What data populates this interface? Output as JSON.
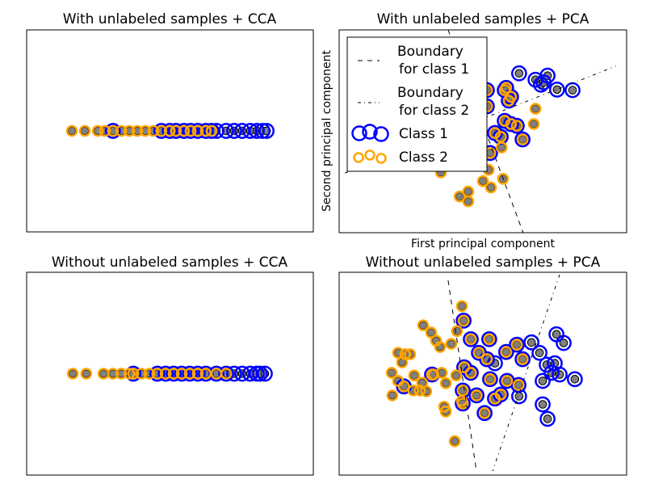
{
  "colors": {
    "class1": "#0000ff",
    "class2": "#ffa500",
    "sample": "#808080",
    "boundary": "#000000"
  },
  "chart_data": [
    {
      "type": "scatter",
      "title": "With unlabeled samples + CCA",
      "xlabel": "",
      "ylabel": "",
      "xlim": [
        0,
        10
      ],
      "ylim": [
        -1,
        1
      ],
      "ticks": false,
      "grid": false,
      "points": [
        [
          1.58,
          0,
          "2"
        ],
        [
          2.03,
          0,
          "2"
        ],
        [
          2.48,
          0,
          "2"
        ],
        [
          2.73,
          0,
          "2"
        ],
        [
          3.01,
          0,
          "12"
        ],
        [
          3.3,
          0,
          "2"
        ],
        [
          3.58,
          0,
          "2"
        ],
        [
          3.86,
          0,
          "2"
        ],
        [
          4.14,
          0,
          "2"
        ],
        [
          4.42,
          0,
          "2"
        ],
        [
          4.7,
          0,
          "12"
        ],
        [
          4.99,
          0,
          "12"
        ],
        [
          5.21,
          0,
          "12"
        ],
        [
          5.49,
          0,
          "12"
        ],
        [
          5.72,
          0,
          "12"
        ],
        [
          5.97,
          0,
          "12"
        ],
        [
          6.25,
          0,
          "12"
        ],
        [
          6.45,
          0,
          "12"
        ],
        [
          6.62,
          0,
          "1"
        ],
        [
          6.96,
          0,
          "1"
        ],
        [
          7.24,
          0,
          "1"
        ],
        [
          7.52,
          0,
          "1"
        ],
        [
          7.8,
          0,
          "1"
        ],
        [
          8.03,
          0,
          "1"
        ],
        [
          8.23,
          0,
          "1"
        ],
        [
          8.37,
          0,
          "1"
        ]
      ],
      "boundaries": []
    },
    {
      "type": "scatter",
      "title": "With unlabeled samples + PCA",
      "xlabel": "First principal component",
      "ylabel": "Second principal component",
      "xlim": [
        0,
        10
      ],
      "ylim": [
        0,
        7
      ],
      "ticks": false,
      "grid": false,
      "points": [
        [
          6.26,
          5.5,
          "1"
        ],
        [
          7.25,
          5.42,
          "1"
        ],
        [
          6.83,
          5.28,
          "1"
        ],
        [
          7.02,
          5.11,
          "1"
        ],
        [
          7.58,
          4.94,
          "1"
        ],
        [
          8.12,
          4.92,
          "1"
        ],
        [
          7.11,
          5.19,
          "1"
        ],
        [
          5.81,
          5.0,
          "12"
        ],
        [
          5.76,
          4.92,
          "12"
        ],
        [
          5.9,
          4.56,
          "12"
        ],
        [
          5.98,
          4.69,
          "12"
        ],
        [
          5.14,
          4.92,
          "12"
        ],
        [
          5.14,
          4.36,
          "12"
        ],
        [
          5.76,
          3.86,
          "12"
        ],
        [
          5.98,
          3.75,
          "12"
        ],
        [
          6.18,
          3.69,
          "12"
        ],
        [
          6.38,
          3.22,
          "12"
        ],
        [
          5.42,
          3.44,
          "12"
        ],
        [
          5.62,
          3.31,
          "12"
        ],
        [
          5.25,
          2.75,
          "12"
        ],
        [
          6.83,
          4.28,
          "2"
        ],
        [
          6.77,
          3.75,
          "2"
        ],
        [
          5.65,
          2.94,
          "2"
        ],
        [
          5.2,
          2.17,
          "2"
        ],
        [
          5.0,
          1.78,
          "2"
        ],
        [
          5.28,
          1.56,
          "2"
        ],
        [
          5.7,
          1.86,
          "2"
        ],
        [
          4.49,
          1.42,
          "2"
        ],
        [
          4.19,
          1.25,
          "2"
        ],
        [
          4.49,
          1.08,
          "2"
        ],
        [
          3.54,
          2.08,
          "2"
        ]
      ],
      "boundaries": [
        {
          "name": "Boundary\nfor class 1",
          "style": "dashed",
          "from": [
            3.79,
            7.0
          ],
          "to": [
            6.4,
            0.0
          ]
        },
        {
          "name": "Boundary\nfor class 2",
          "style": "dashdot",
          "from": [
            0.2,
            2.06
          ],
          "to": [
            9.63,
            5.75
          ]
        }
      ],
      "legend": {
        "placement": "upper-left",
        "entries": [
          {
            "line1": "Boundary",
            "line2": "for class 1",
            "marker": "dashed"
          },
          {
            "line1": "Boundary",
            "line2": "for class 2",
            "marker": "dashdot"
          },
          {
            "line1": "Class 1",
            "marker": "class1"
          },
          {
            "line1": "Class 2",
            "marker": "class2"
          }
        ]
      }
    },
    {
      "type": "scatter",
      "title": "Without unlabeled samples + CCA",
      "xlabel": "",
      "ylabel": "",
      "xlim": [
        0,
        10
      ],
      "ylim": [
        -1,
        1
      ],
      "ticks": false,
      "grid": false,
      "points": [
        [
          1.61,
          0,
          "2"
        ],
        [
          2.08,
          0,
          "2"
        ],
        [
          2.68,
          0,
          "2"
        ],
        [
          3.01,
          0,
          "2"
        ],
        [
          3.3,
          0,
          "2"
        ],
        [
          3.58,
          0,
          "2"
        ],
        [
          3.72,
          0,
          "12"
        ],
        [
          4.0,
          0,
          "2"
        ],
        [
          4.28,
          0,
          "2"
        ],
        [
          4.56,
          0,
          "12"
        ],
        [
          4.85,
          0,
          "12"
        ],
        [
          5.13,
          0,
          "12"
        ],
        [
          5.41,
          0,
          "12"
        ],
        [
          5.69,
          0,
          "12"
        ],
        [
          5.97,
          0,
          "12"
        ],
        [
          6.25,
          0,
          "12"
        ],
        [
          6.62,
          0,
          "12"
        ],
        [
          6.96,
          0,
          "12"
        ],
        [
          7.24,
          0,
          "1"
        ],
        [
          7.52,
          0,
          "1"
        ],
        [
          7.8,
          0,
          "1"
        ],
        [
          8.03,
          0,
          "1"
        ],
        [
          8.14,
          0,
          "1"
        ],
        [
          8.31,
          0,
          "1"
        ]
      ],
      "boundaries": []
    },
    {
      "type": "scatter",
      "title": "Without unlabeled samples + PCA",
      "xlabel": "",
      "ylabel": "",
      "xlim": [
        0,
        10
      ],
      "ylim": [
        0,
        7
      ],
      "ticks": false,
      "grid": false,
      "points": [
        [
          4.27,
          5.83,
          "2"
        ],
        [
          2.92,
          5.17,
          "2"
        ],
        [
          3.2,
          4.92,
          "2"
        ],
        [
          3.37,
          4.64,
          "2"
        ],
        [
          3.51,
          4.42,
          "2"
        ],
        [
          4.1,
          4.97,
          "2"
        ],
        [
          3.9,
          4.53,
          "2"
        ],
        [
          2.05,
          4.22,
          "2"
        ],
        [
          2.3,
          4.17,
          "2"
        ],
        [
          2.47,
          4.17,
          "2"
        ],
        [
          2.19,
          3.89,
          "2"
        ],
        [
          1.83,
          3.53,
          "2"
        ],
        [
          1.85,
          2.75,
          "2"
        ],
        [
          2.05,
          3.25,
          "2"
        ],
        [
          2.61,
          3.44,
          "2"
        ],
        [
          2.58,
          2.92,
          "2"
        ],
        [
          2.81,
          2.92,
          "2"
        ],
        [
          3.03,
          2.89,
          "2"
        ],
        [
          2.89,
          3.19,
          "2"
        ],
        [
          3.29,
          3.47,
          "2"
        ],
        [
          3.57,
          3.53,
          "2"
        ],
        [
          3.71,
          3.17,
          "2"
        ],
        [
          4.07,
          3.44,
          "2"
        ],
        [
          3.65,
          2.36,
          "2"
        ],
        [
          3.71,
          2.19,
          "2"
        ],
        [
          4.02,
          1.17,
          "2"
        ],
        [
          4.27,
          2.56,
          "2"
        ],
        [
          4.33,
          5.33,
          "12"
        ],
        [
          4.58,
          4.69,
          "12"
        ],
        [
          5.22,
          4.69,
          "12"
        ],
        [
          5.81,
          4.25,
          "12"
        ],
        [
          6.18,
          4.5,
          "12"
        ],
        [
          6.38,
          4.0,
          "12"
        ],
        [
          4.86,
          4.22,
          "12"
        ],
        [
          5.14,
          4.0,
          "12"
        ],
        [
          4.35,
          3.72,
          "12"
        ],
        [
          4.58,
          3.53,
          "12"
        ],
        [
          4.78,
          2.75,
          "12"
        ],
        [
          5.25,
          3.31,
          "12"
        ],
        [
          5.84,
          3.25,
          "12"
        ],
        [
          6.24,
          3.11,
          "12"
        ],
        [
          5.42,
          2.64,
          "12"
        ],
        [
          5.62,
          2.78,
          "12"
        ],
        [
          4.3,
          2.92,
          "12"
        ],
        [
          3.23,
          3.47,
          "12"
        ],
        [
          2.25,
          3.06,
          "12"
        ],
        [
          5.06,
          2.14,
          "12"
        ],
        [
          4.3,
          2.47,
          "12"
        ],
        [
          6.69,
          4.58,
          "1"
        ],
        [
          6.97,
          4.22,
          "1"
        ],
        [
          7.56,
          4.86,
          "1"
        ],
        [
          7.81,
          4.56,
          "1"
        ],
        [
          7.22,
          3.81,
          "1"
        ],
        [
          7.5,
          3.86,
          "1"
        ],
        [
          7.39,
          3.53,
          "1"
        ],
        [
          7.67,
          3.47,
          "1"
        ],
        [
          7.08,
          3.25,
          "1"
        ],
        [
          8.2,
          3.31,
          "1"
        ],
        [
          7.08,
          2.44,
          "1"
        ],
        [
          7.25,
          1.94,
          "1"
        ],
        [
          6.26,
          2.72,
          "1"
        ],
        [
          5.42,
          3.86,
          "1"
        ]
      ],
      "boundaries": [
        {
          "style": "dashed",
          "from": [
            3.79,
            6.72
          ],
          "to": [
            4.78,
            0.11
          ]
        },
        {
          "style": "dashdot",
          "from": [
            7.67,
            6.92
          ],
          "to": [
            5.34,
            0.14
          ]
        }
      ]
    }
  ]
}
